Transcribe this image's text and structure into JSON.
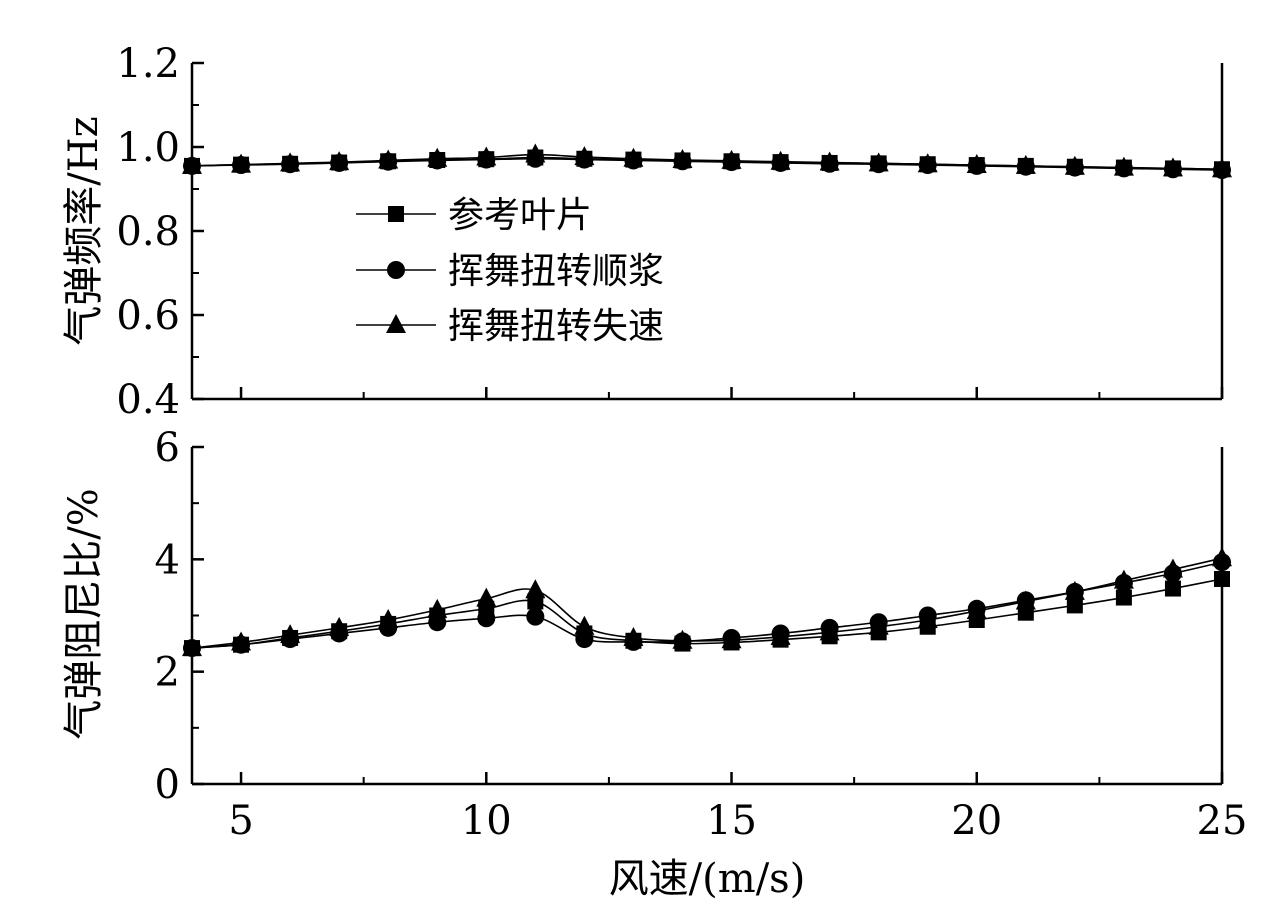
{
  "chart_data": [
    {
      "type": "line",
      "ylabel": "气弹频率/Hz",
      "xlim": [
        4,
        25
      ],
      "ylim": [
        0.4,
        1.2
      ],
      "yticks": [
        "0.4",
        "0.6",
        "0.8",
        "1.0",
        "1.2"
      ],
      "x": [
        4,
        5,
        6,
        7,
        8,
        9,
        10,
        11,
        12,
        13,
        14,
        15,
        16,
        17,
        18,
        19,
        20,
        21,
        22,
        23,
        24,
        25
      ],
      "series": [
        {
          "name": "参考叶片",
          "marker": "square",
          "values": [
            0.955,
            0.958,
            0.96,
            0.963,
            0.966,
            0.969,
            0.971,
            0.975,
            0.972,
            0.97,
            0.968,
            0.966,
            0.964,
            0.962,
            0.961,
            0.959,
            0.957,
            0.955,
            0.953,
            0.951,
            0.949,
            0.947
          ]
        },
        {
          "name": "挥舞扭转顺浆",
          "marker": "circle",
          "values": [
            0.955,
            0.957,
            0.959,
            0.962,
            0.965,
            0.968,
            0.97,
            0.972,
            0.97,
            0.968,
            0.966,
            0.964,
            0.962,
            0.96,
            0.959,
            0.957,
            0.955,
            0.953,
            0.951,
            0.949,
            0.947,
            0.945
          ]
        },
        {
          "name": "挥舞扭转失速",
          "marker": "triangle",
          "values": [
            0.955,
            0.958,
            0.961,
            0.964,
            0.968,
            0.972,
            0.975,
            0.982,
            0.976,
            0.972,
            0.969,
            0.967,
            0.965,
            0.963,
            0.961,
            0.959,
            0.957,
            0.955,
            0.953,
            0.951,
            0.949,
            0.947
          ]
        }
      ]
    },
    {
      "type": "line",
      "xlabel": "风速/(m/s)",
      "ylabel": "气弹阻尼比/%",
      "xlim": [
        4,
        25
      ],
      "ylim": [
        0,
        6
      ],
      "xticks": [
        "5",
        "10",
        "15",
        "20",
        "25"
      ],
      "yticks": [
        "0",
        "2",
        "4",
        "6"
      ],
      "x": [
        4,
        5,
        6,
        7,
        8,
        9,
        10,
        11,
        12,
        13,
        14,
        15,
        16,
        17,
        18,
        19,
        20,
        21,
        22,
        23,
        24,
        25
      ],
      "series": [
        {
          "name": "参考叶片",
          "marker": "square",
          "values": [
            2.42,
            2.48,
            2.6,
            2.72,
            2.85,
            3.0,
            3.12,
            3.25,
            2.68,
            2.55,
            2.5,
            2.52,
            2.57,
            2.63,
            2.7,
            2.8,
            2.92,
            3.05,
            3.18,
            3.32,
            3.48,
            3.65
          ]
        },
        {
          "name": "挥舞扭转顺浆",
          "marker": "circle",
          "values": [
            2.42,
            2.48,
            2.58,
            2.68,
            2.78,
            2.88,
            2.95,
            2.98,
            2.58,
            2.53,
            2.54,
            2.6,
            2.68,
            2.78,
            2.88,
            3.0,
            3.12,
            3.27,
            3.42,
            3.58,
            3.75,
            3.95
          ]
        },
        {
          "name": "挥舞扭转失速",
          "marker": "triangle",
          "values": [
            2.42,
            2.52,
            2.65,
            2.78,
            2.92,
            3.1,
            3.3,
            3.45,
            2.8,
            2.6,
            2.55,
            2.56,
            2.62,
            2.7,
            2.8,
            2.92,
            3.08,
            3.25,
            3.42,
            3.62,
            3.82,
            4.02
          ]
        }
      ]
    }
  ]
}
